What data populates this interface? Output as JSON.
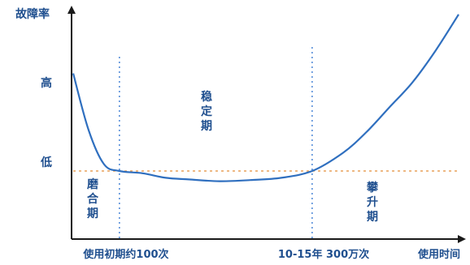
{
  "chart_data": {
    "type": "line",
    "title": "",
    "ylabel": "故障率",
    "xlabel": "使用时间",
    "y_tick_labels": [
      "高",
      "低"
    ],
    "x_markers": [
      "使用初期约100次",
      "10-15年 300万次"
    ],
    "phases": [
      {
        "name": "磨合期",
        "chars": [
          "磨",
          "合",
          "期"
        ]
      },
      {
        "name": "稳定期",
        "chars": [
          "稳",
          "定",
          "期"
        ]
      },
      {
        "name": "攀升期",
        "chars": [
          "攀",
          "升",
          "期"
        ]
      }
    ],
    "xlim": [
      0,
      100
    ],
    "ylim": [
      0,
      100
    ],
    "series": [
      {
        "x": [
          0,
          4,
          8,
          12,
          18,
          24,
          30,
          38,
          46,
          54,
          62,
          70,
          76,
          82,
          88,
          94,
          100
        ],
        "y": [
          73,
          48,
          33,
          30,
          29,
          27,
          26.3,
          25.5,
          26,
          27,
          30,
          38,
          47,
          58,
          69,
          83,
          99
        ]
      }
    ],
    "reference_y": 30,
    "grid": false,
    "colors": {
      "axis": "#1a1a1a",
      "curve": "#2f6fbf",
      "marker_line": "#4a86d6",
      "reference_line": "#e8a15a",
      "label": "#1f4f8f"
    }
  }
}
